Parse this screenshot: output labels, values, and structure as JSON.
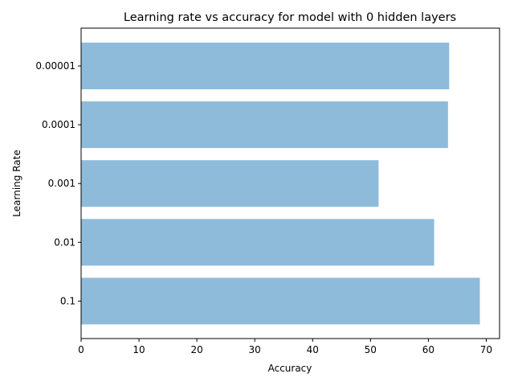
{
  "chart_data": {
    "type": "bar",
    "orientation": "horizontal",
    "title": "Learning rate vs accuracy for model with 0 hidden layers",
    "xlabel": "Accuracy",
    "ylabel": "Learning Rate",
    "categories": [
      "0.00001",
      "0.0001",
      "0.001",
      "0.01",
      "0.1"
    ],
    "values": [
      63.6,
      63.4,
      51.4,
      61.0,
      68.9
    ],
    "xlim": [
      0,
      72.3
    ],
    "xticks": [
      "0",
      "10",
      "20",
      "30",
      "40",
      "50",
      "60",
      "70"
    ],
    "grid": false,
    "bar_color": "#8fbbdb"
  }
}
